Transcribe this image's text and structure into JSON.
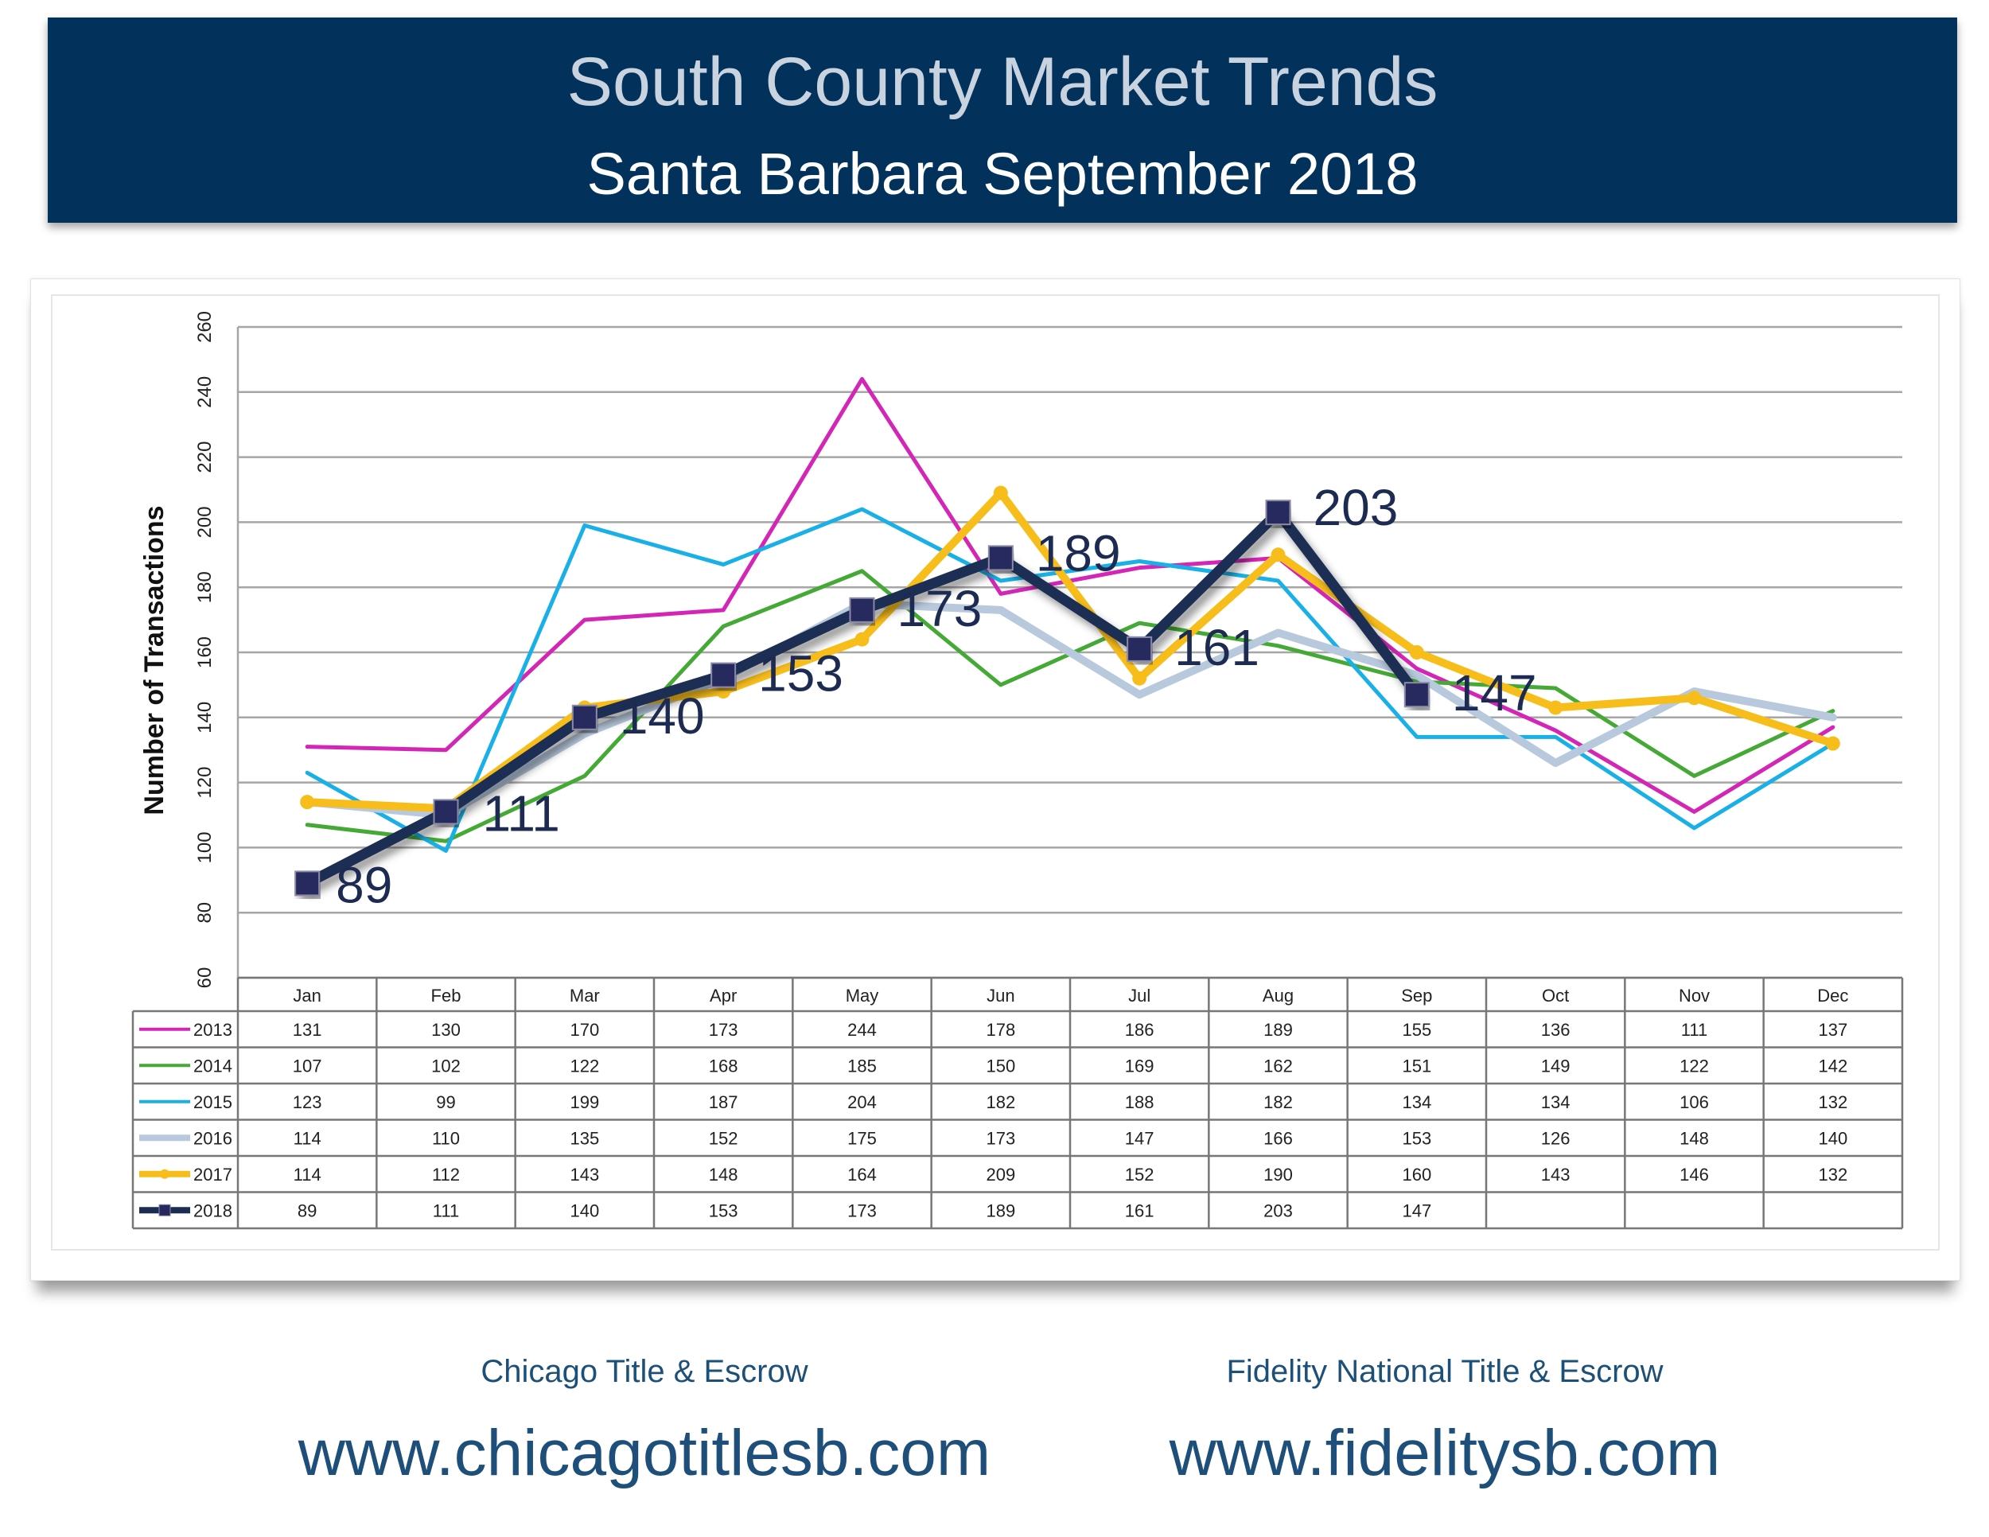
{
  "header": {
    "title": "South County Market Trends",
    "subtitle": "Santa Barbara September 2018"
  },
  "footer": {
    "left_company": "Chicago Title & Escrow",
    "left_url": "www.chicagotitlesb.com",
    "right_company": "Fidelity National Title & Escrow",
    "right_url": "www.fidelitysb.com"
  },
  "chart_data": {
    "type": "line",
    "title": "",
    "xlabel": "",
    "ylabel": "Number of Transactions",
    "ylim": [
      60,
      260
    ],
    "yticks": [
      60,
      80,
      100,
      120,
      140,
      160,
      180,
      200,
      220,
      240,
      260
    ],
    "grid": true,
    "legend": "data-table-below",
    "categories": [
      "Jan",
      "Feb",
      "Mar",
      "Apr",
      "May",
      "Jun",
      "Jul",
      "Aug",
      "Sep",
      "Oct",
      "Nov",
      "Dec"
    ],
    "series": [
      {
        "name": "2013",
        "color": "#d426b6",
        "values": [
          131,
          130,
          170,
          173,
          244,
          178,
          186,
          189,
          155,
          136,
          111,
          137
        ]
      },
      {
        "name": "2014",
        "color": "#45a935",
        "values": [
          107,
          102,
          122,
          168,
          185,
          150,
          169,
          162,
          151,
          149,
          122,
          142
        ]
      },
      {
        "name": "2015",
        "color": "#18b0e6",
        "values": [
          123,
          99,
          199,
          187,
          204,
          182,
          188,
          182,
          134,
          134,
          106,
          132
        ]
      },
      {
        "name": "2016",
        "color": "#b8c9de",
        "values": [
          114,
          110,
          135,
          152,
          175,
          173,
          147,
          166,
          153,
          126,
          148,
          140
        ]
      },
      {
        "name": "2017",
        "color": "#f7bd1b",
        "values": [
          114,
          112,
          143,
          148,
          164,
          209,
          152,
          190,
          160,
          143,
          146,
          132
        ]
      },
      {
        "name": "2018",
        "color": "#1b2d52",
        "values": [
          89,
          111,
          140,
          153,
          173,
          189,
          161,
          203,
          147,
          null,
          null,
          null
        ]
      }
    ],
    "data_labels": {
      "series": "2018",
      "values": [
        89,
        111,
        140,
        153,
        173,
        189,
        161,
        203,
        147
      ]
    }
  }
}
